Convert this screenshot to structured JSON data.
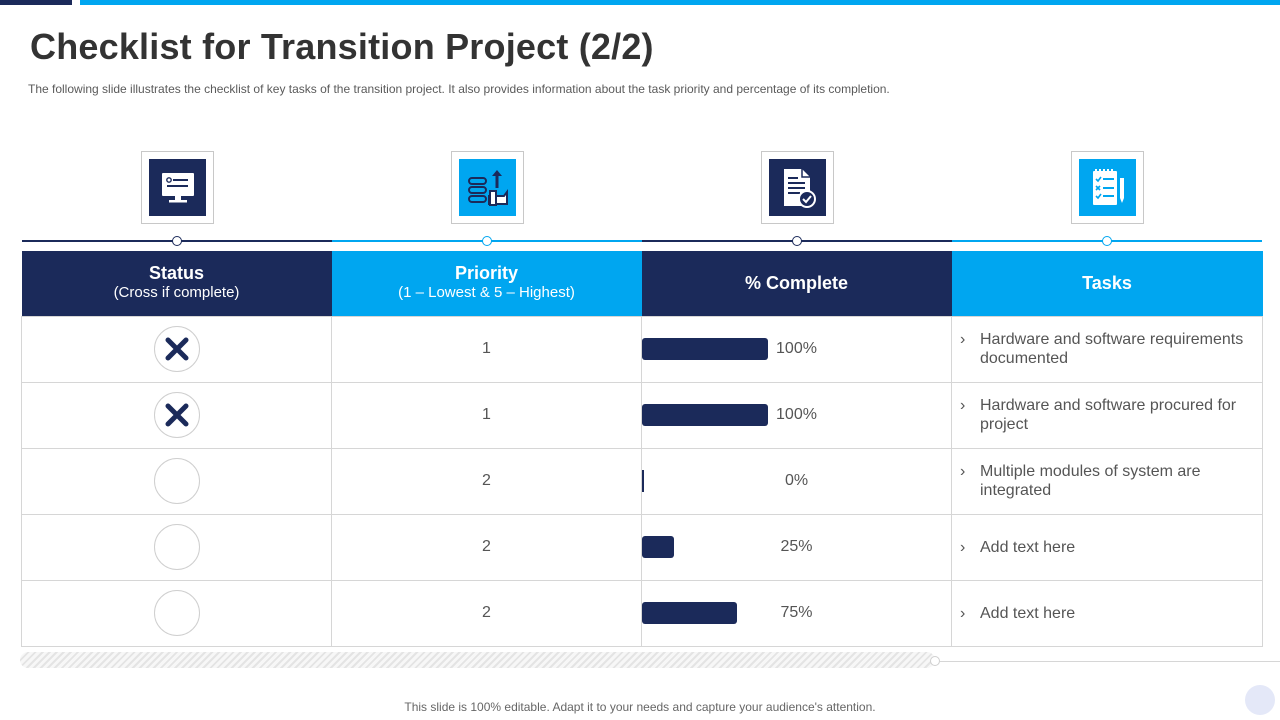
{
  "slide": {
    "title": "Checklist for Transition Project (2/2)",
    "subtitle": "The following  slide illustrates the checklist of key tasks of the transition project. It also provides  information  about the task priority and percentage  of its completion.",
    "footer": "This slide is 100% editable. Adapt it to your needs and capture your audience's attention."
  },
  "colors": {
    "dark": "#1b2a5a",
    "blue": "#00a6f0"
  },
  "icons": [
    "monitor-icon",
    "priority-list-icon",
    "document-check-icon",
    "checklist-icon"
  ],
  "table": {
    "headers": [
      {
        "main": "Status",
        "sub": "(Cross if complete)"
      },
      {
        "main": "Priority",
        "sub": "(1 – Lowest & 5 – Highest)"
      },
      {
        "main": "% Complete",
        "sub": ""
      },
      {
        "main": "Tasks",
        "sub": ""
      }
    ],
    "rows": [
      {
        "complete": true,
        "priority": "1",
        "percent": 100,
        "percent_label": "100%",
        "chevron": "›",
        "task": "Hardware and software requirements documented"
      },
      {
        "complete": true,
        "priority": "1",
        "percent": 100,
        "percent_label": "100%",
        "chevron": "›",
        "task": "Hardware and software procured for project"
      },
      {
        "complete": false,
        "priority": "2",
        "percent": 0,
        "percent_label": "0%",
        "chevron": "›",
        "task": "Multiple modules of system are integrated"
      },
      {
        "complete": false,
        "priority": "2",
        "percent": 25,
        "percent_label": "25%",
        "chevron": "›",
        "task": "Add text here"
      },
      {
        "complete": false,
        "priority": "2",
        "percent": 75,
        "percent_label": "75%",
        "chevron": "›",
        "task": "Add text here"
      }
    ]
  }
}
